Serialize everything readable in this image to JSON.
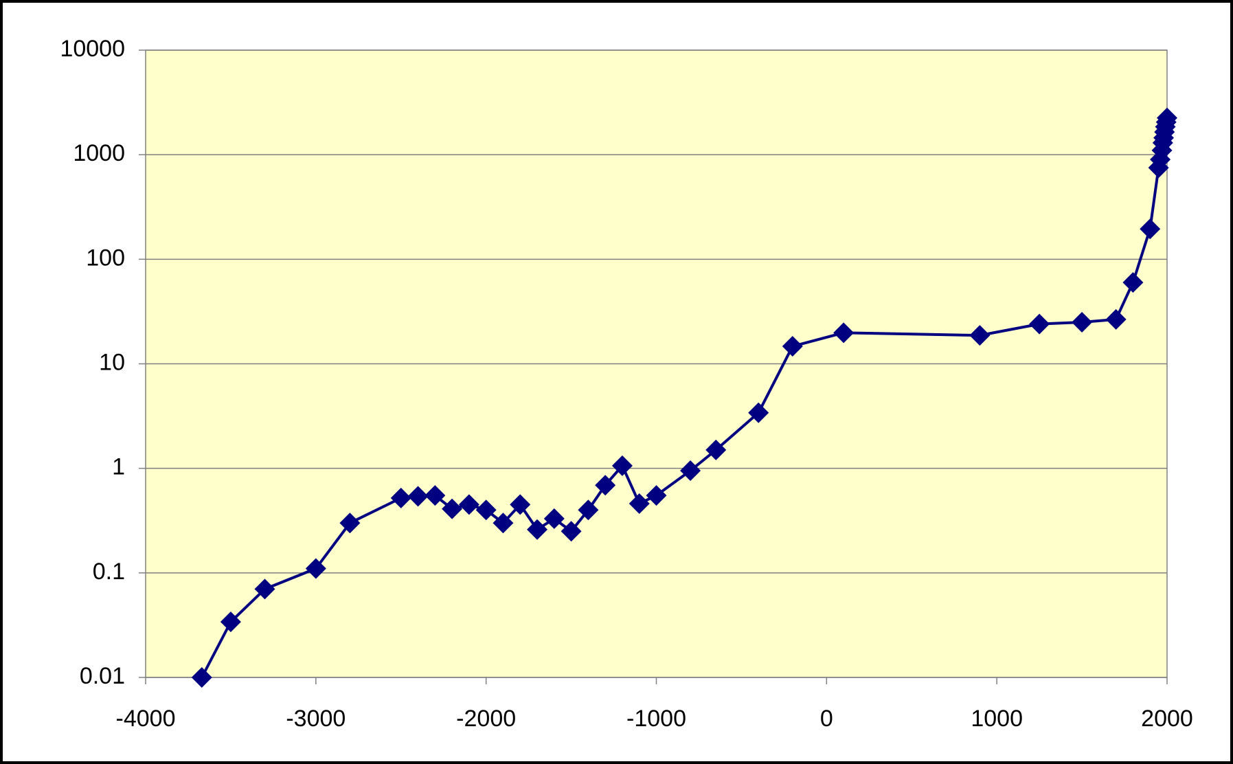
{
  "chart_data": {
    "type": "line",
    "x": [
      -3670,
      -3500,
      -3300,
      -3000,
      -2800,
      -2500,
      -2400,
      -2300,
      -2200,
      -2100,
      -2000,
      -1900,
      -1800,
      -1700,
      -1600,
      -1500,
      -1400,
      -1300,
      -1200,
      -1100,
      -1000,
      -800,
      -650,
      -400,
      -200,
      100,
      900,
      1250,
      1500,
      1700,
      1800,
      1900,
      1950,
      1960,
      1970,
      1975,
      1980,
      1985,
      1990,
      1995,
      2000
    ],
    "values": [
      0.01,
      0.034,
      0.07,
      0.11,
      0.3,
      0.52,
      0.54,
      0.55,
      0.41,
      0.45,
      0.4,
      0.3,
      0.45,
      0.26,
      0.33,
      0.25,
      0.4,
      0.69,
      1.06,
      0.46,
      0.55,
      0.95,
      1.5,
      3.4,
      14.7,
      19.8,
      18.7,
      24,
      25,
      26.6,
      60,
      195,
      750,
      900,
      1100,
      1300,
      1450,
      1650,
      1850,
      2050,
      2250
    ],
    "color": "#000080",
    "xlim": [
      -4000,
      2000
    ],
    "xticks": [
      -4000,
      -3000,
      -2000,
      -1000,
      0,
      1000,
      2000
    ],
    "ylim": [
      0.01,
      10000
    ],
    "yticks": [
      0.01,
      0.1,
      1,
      10,
      100,
      1000,
      10000
    ],
    "log_y": true,
    "grid": true
  }
}
